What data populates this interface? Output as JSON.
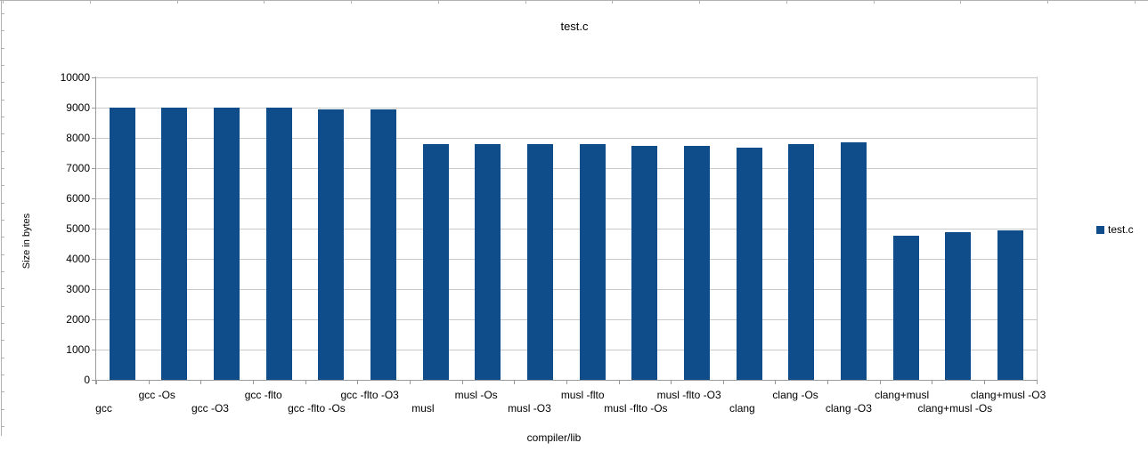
{
  "window": {
    "background": "#ffffff",
    "ruler_color": "#b1b1b1"
  },
  "chart_data": {
    "type": "bar",
    "title": "test.c",
    "xlabel": "compiler/lib",
    "ylabel": "Size in bytes",
    "categories": [
      "gcc",
      "gcc -Os",
      "gcc -O3",
      "gcc -flto",
      "gcc -flto -Os",
      "gcc -flto -O3",
      "musl",
      "musl -Os",
      "musl -O3",
      "musl -flto",
      "musl -flto -Os",
      "musl -flto -O3",
      "clang",
      "clang -Os",
      "clang -O3",
      "clang+musl",
      "clang+musl -Os",
      "clang+musl -O3"
    ],
    "series": [
      {
        "name": "test.c",
        "color": "#0e4c8a",
        "values": [
          9000,
          9000,
          9000,
          8990,
          8930,
          8940,
          7790,
          7790,
          7790,
          7780,
          7730,
          7740,
          7660,
          7800,
          7840,
          4760,
          4890,
          4930
        ]
      }
    ],
    "ylim": [
      0,
      10000
    ],
    "ytick_interval": 1000,
    "grid": true,
    "legend_position": "right-middle",
    "axis_color": "#9a9a9a",
    "grid_color": "#c9c9c9"
  }
}
